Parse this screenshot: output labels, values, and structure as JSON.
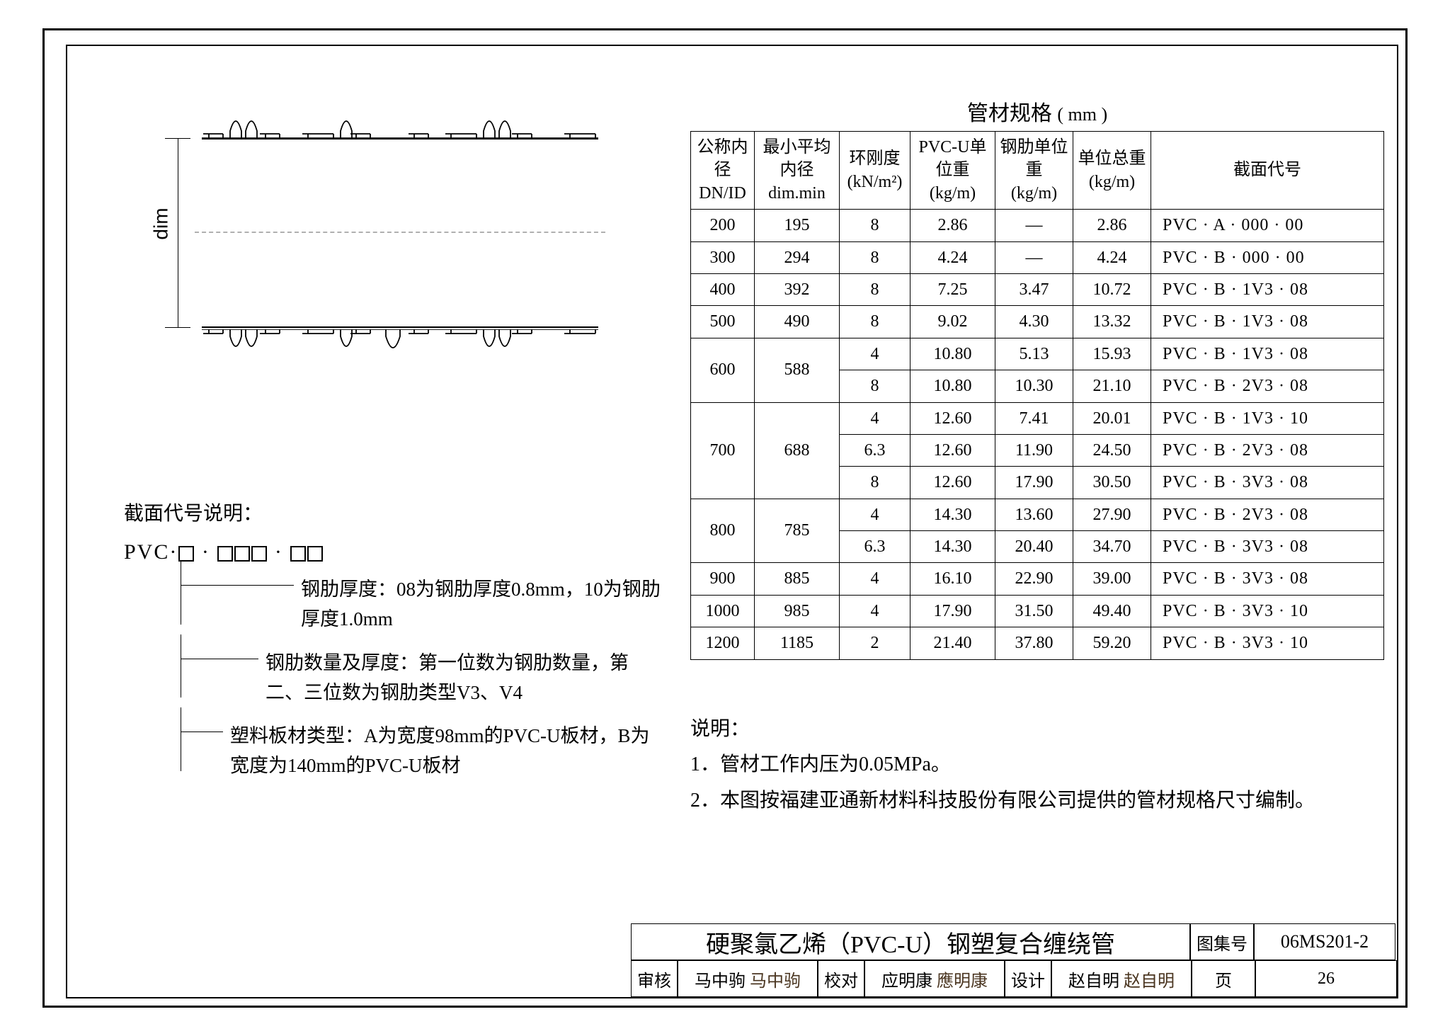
{
  "diagram": {
    "dim_label": "dim"
  },
  "table": {
    "title": "管材规格",
    "title_unit": "( mm )",
    "columns": [
      {
        "l1": "公称内径",
        "l2": "DN/ID"
      },
      {
        "l1": "最小平均内径",
        "l2": "dim.min"
      },
      {
        "l1": "环刚度",
        "l2": "(kN/m²)"
      },
      {
        "l1": "PVC-U单位重",
        "l2": "(kg/m)"
      },
      {
        "l1": "钢肋单位重",
        "l2": "(kg/m)"
      },
      {
        "l1": "单位总重",
        "l2": "(kg/m)"
      },
      {
        "l1": "截面代号",
        "l2": ""
      }
    ],
    "rows": [
      {
        "dn": "200",
        "dmin": "195",
        "k": "8",
        "pvc": "2.86",
        "steel": "—",
        "total": "2.86",
        "code": "PVC · A · 000 · 00"
      },
      {
        "dn": "300",
        "dmin": "294",
        "k": "8",
        "pvc": "4.24",
        "steel": "—",
        "total": "4.24",
        "code": "PVC · B · 000 · 00"
      },
      {
        "dn": "400",
        "dmin": "392",
        "k": "8",
        "pvc": "7.25",
        "steel": "3.47",
        "total": "10.72",
        "code": "PVC · B · 1V3 · 08"
      },
      {
        "dn": "500",
        "dmin": "490",
        "k": "8",
        "pvc": "9.02",
        "steel": "4.30",
        "total": "13.32",
        "code": "PVC · B · 1V3 · 08"
      },
      {
        "dn": "600",
        "dmin": "588",
        "k": "4",
        "pvc": "10.80",
        "steel": "5.13",
        "total": "15.93",
        "code": "PVC · B · 1V3 · 08",
        "rowspan": 2
      },
      {
        "k": "8",
        "pvc": "10.80",
        "steel": "10.30",
        "total": "21.10",
        "code": "PVC · B · 2V3 · 08"
      },
      {
        "dn": "700",
        "dmin": "688",
        "k": "4",
        "pvc": "12.60",
        "steel": "7.41",
        "total": "20.01",
        "code": "PVC · B · 1V3 · 10",
        "rowspan": 3
      },
      {
        "k": "6.3",
        "pvc": "12.60",
        "steel": "11.90",
        "total": "24.50",
        "code": "PVC · B · 2V3 · 08"
      },
      {
        "k": "8",
        "pvc": "12.60",
        "steel": "17.90",
        "total": "30.50",
        "code": "PVC · B · 3V3 · 08"
      },
      {
        "dn": "800",
        "dmin": "785",
        "k": "4",
        "pvc": "14.30",
        "steel": "13.60",
        "total": "27.90",
        "code": "PVC · B · 2V3 · 08",
        "rowspan": 2
      },
      {
        "k": "6.3",
        "pvc": "14.30",
        "steel": "20.40",
        "total": "34.70",
        "code": "PVC · B · 3V3 · 08"
      },
      {
        "dn": "900",
        "dmin": "885",
        "k": "4",
        "pvc": "16.10",
        "steel": "22.90",
        "total": "39.00",
        "code": "PVC · B · 3V3 · 08"
      },
      {
        "dn": "1000",
        "dmin": "985",
        "k": "4",
        "pvc": "17.90",
        "steel": "31.50",
        "total": "49.40",
        "code": "PVC · B · 3V3 · 10"
      },
      {
        "dn": "1200",
        "dmin": "1185",
        "k": "2",
        "pvc": "21.40",
        "steel": "37.80",
        "total": "59.20",
        "code": "PVC · B · 3V3 · 10"
      }
    ],
    "col_widths": [
      "90px",
      "120px",
      "100px",
      "120px",
      "110px",
      "110px",
      "auto"
    ],
    "font_size": 24,
    "border_color": "#000000"
  },
  "code_explanation": {
    "title": "截面代号说明：",
    "pattern_prefix": "PVC·",
    "lines": [
      "钢肋厚度：08为钢肋厚度0.8mm，10为钢肋厚度1.0mm",
      "钢肋数量及厚度：第一位数为钢肋数量，第二、三位数为钢肋类型V3、V4",
      "塑料板材类型：A为宽度98mm的PVC-U板材，B为宽度为140mm的PVC-U板材"
    ]
  },
  "notes": {
    "heading": "说明：",
    "items": [
      "1．管材工作内压为0.05MPa。",
      "2．本图按福建亚通新材料科技股份有限公司提供的管材规格尺寸编制。"
    ]
  },
  "titleblock": {
    "drawing_title": "硬聚氯乙烯（PVC-U）钢塑复合缠绕管",
    "set_label": "图集号",
    "set_value": "06MS201-2",
    "review_label": "审核",
    "reviewer": "马中驹",
    "reviewer_sig": "马中驹",
    "check_label": "校对",
    "checker": "应明康",
    "checker_sig": "應明康",
    "design_label": "设计",
    "designer": "赵自明",
    "designer_sig": "赵自明",
    "page_label": "页",
    "page_value": "26"
  },
  "style": {
    "background_color": "#ffffff",
    "stroke_color": "#000000",
    "centerline_color": "#b0b0b0",
    "body_fontsize": 28,
    "table_fontsize": 24,
    "title_fontsize": 34
  }
}
